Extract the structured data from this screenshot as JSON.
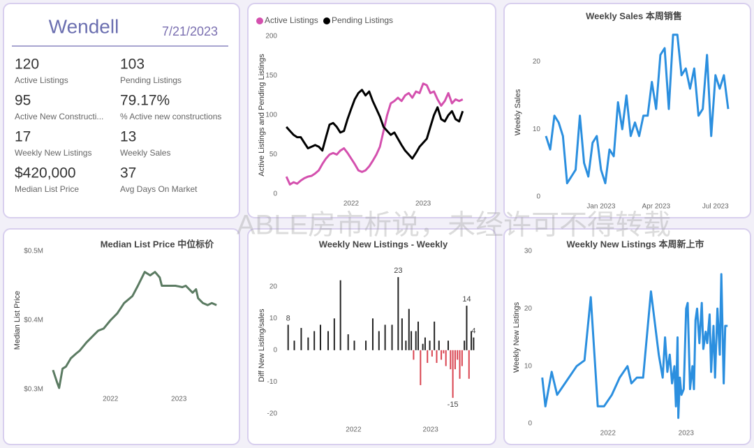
{
  "summary": {
    "title": "Wendell",
    "date": "7/21/2023",
    "kpis": [
      {
        "value": "120",
        "label": "Active Listings"
      },
      {
        "value": "103",
        "label": "Pending Listings"
      },
      {
        "value": "95",
        "label": "Active New Constructi..."
      },
      {
        "value": "79.17%",
        "label": "% Active new constructions"
      },
      {
        "value": "17",
        "label": "Weekly New Listings"
      },
      {
        "value": "13",
        "label": "Weekly Sales"
      },
      {
        "value": "$420,000",
        "label": "Median List Price"
      },
      {
        "value": "37",
        "label": "Avg Days On Market"
      }
    ]
  },
  "watermark": "ABLE房市析说，未经许可不得转载",
  "chart_data": [
    {
      "type": "line",
      "y_label": "Active Listings and Pending Listings",
      "legend": "top-left",
      "x": [
        2021.1,
        2021.15,
        2021.2,
        2021.25,
        2021.3,
        2021.35,
        2021.4,
        2021.45,
        2021.5,
        2021.55,
        2021.6,
        2021.65,
        2021.7,
        2021.75,
        2021.8,
        2021.85,
        2021.9,
        2021.95,
        2022.0,
        2022.05,
        2022.1,
        2022.15,
        2022.2,
        2022.25,
        2022.3,
        2022.35,
        2022.4,
        2022.45,
        2022.5,
        2022.55,
        2022.6,
        2022.65,
        2022.7,
        2022.75,
        2022.8,
        2022.85,
        2022.9,
        2022.95,
        2023.0,
        2023.05,
        2023.1,
        2023.15,
        2023.2,
        2023.25,
        2023.3,
        2023.35,
        2023.4,
        2023.45,
        2023.5,
        2023.55
      ],
      "series": [
        {
          "name": "Active Listings",
          "color": "#d450ae",
          "values": [
            22,
            12,
            15,
            13,
            17,
            20,
            22,
            23,
            26,
            30,
            38,
            45,
            50,
            52,
            50,
            55,
            58,
            52,
            45,
            38,
            30,
            28,
            30,
            35,
            42,
            50,
            60,
            80,
            100,
            115,
            118,
            122,
            118,
            125,
            128,
            122,
            130,
            128,
            140,
            138,
            128,
            130,
            120,
            112,
            118,
            128,
            115,
            120,
            118,
            120
          ]
        },
        {
          "name": "Pending Listings",
          "color": "#000000",
          "values": [
            85,
            80,
            75,
            72,
            72,
            65,
            58,
            60,
            62,
            60,
            55,
            72,
            88,
            90,
            85,
            78,
            80,
            95,
            108,
            120,
            128,
            132,
            125,
            130,
            118,
            108,
            98,
            85,
            80,
            75,
            78,
            70,
            62,
            55,
            50,
            45,
            52,
            60,
            65,
            70,
            85,
            100,
            110,
            95,
            92,
            100,
            105,
            95,
            92,
            105
          ]
        }
      ],
      "xlim": [
        2021.05,
        2023.6
      ],
      "xticks": [
        2022,
        2023
      ],
      "ylim": [
        0,
        200
      ],
      "yticks": [
        0,
        50,
        100,
        150,
        200
      ]
    },
    {
      "type": "line",
      "title": "Weekly Sales 本周销售",
      "y_label": "Weekly Sales",
      "color": "#2b8fdf",
      "categories": [
        null,
        null,
        null,
        null,
        null,
        null,
        null,
        null,
        null,
        null,
        null,
        null,
        null,
        "Jan 2023",
        null,
        null,
        null,
        null,
        null,
        null,
        null,
        null,
        null,
        null,
        null,
        null,
        "Apr 2023",
        null,
        null,
        null,
        null,
        null,
        null,
        null,
        null,
        null,
        null,
        null,
        null,
        null,
        "Jul 2023",
        null,
        null,
        null
      ],
      "values": [
        9,
        7,
        12,
        11,
        9,
        2,
        3,
        4,
        12,
        5,
        3,
        8,
        9,
        4,
        2,
        7,
        6,
        14,
        10,
        15,
        9,
        11,
        9,
        12,
        12,
        17,
        13,
        21,
        22,
        13,
        24,
        24,
        18,
        19,
        16,
        19,
        12,
        13,
        21,
        9,
        18,
        16,
        18,
        13
      ],
      "ylim": [
        0,
        25
      ],
      "yticks": [
        0,
        10,
        20
      ]
    },
    {
      "type": "line",
      "title": "Median List Price  中位标价",
      "y_label": "Median List Price",
      "color": "#5b7b62",
      "x": [
        2021.16,
        2021.22,
        2021.25,
        2021.3,
        2021.35,
        2021.42,
        2021.5,
        2021.55,
        2021.65,
        2021.75,
        2021.82,
        2021.9,
        2022.0,
        2022.1,
        2022.2,
        2022.32,
        2022.4,
        2022.5,
        2022.58,
        2022.65,
        2022.72,
        2022.75,
        2022.85,
        2022.95,
        2023.05,
        2023.1,
        2023.2,
        2023.25,
        2023.28,
        2023.35,
        2023.42,
        2023.48,
        2023.55
      ],
      "values": [
        328000,
        310000,
        302000,
        330000,
        333000,
        345000,
        352000,
        356000,
        368000,
        378000,
        385000,
        388000,
        400000,
        410000,
        425000,
        435000,
        450000,
        470000,
        465000,
        470000,
        462000,
        450000,
        450000,
        450000,
        448000,
        450000,
        440000,
        445000,
        432000,
        425000,
        422000,
        425000,
        422000
      ],
      "xlim": [
        2021.1,
        2023.65
      ],
      "xticks": [
        2022,
        2023
      ],
      "ylim": [
        300000,
        500000
      ],
      "yticks": [
        {
          "value": 300000,
          "label": "$0.3M"
        },
        {
          "value": 400000,
          "label": "$0.4M"
        },
        {
          "value": 500000,
          "label": "$0.5M"
        }
      ]
    },
    {
      "type": "bar",
      "title": "Weekly New Listings - Weekly",
      "y_label": "Diff New Listing/sales",
      "positive_color": "#222222",
      "negative_color": "#d9434f",
      "x": [
        2021.15,
        2021.23,
        2021.32,
        2021.41,
        2021.49,
        2021.57,
        2021.67,
        2021.75,
        2021.83,
        2021.93,
        2022.01,
        2022.16,
        2022.25,
        2022.33,
        2022.41,
        2022.5,
        2022.58,
        2022.63,
        2022.68,
        2022.72,
        2022.75,
        2022.78,
        2022.81,
        2022.84,
        2022.87,
        2022.9,
        2022.93,
        2022.96,
        2022.99,
        2023.02,
        2023.05,
        2023.08,
        2023.11,
        2023.14,
        2023.17,
        2023.2,
        2023.23,
        2023.26,
        2023.29,
        2023.32,
        2023.35,
        2023.38,
        2023.41,
        2023.44,
        2023.47,
        2023.5,
        2023.53,
        2023.56
      ],
      "values": [
        8,
        3,
        7,
        4,
        6,
        8,
        6,
        10,
        22,
        5,
        3,
        3,
        10,
        6,
        8,
        8,
        23,
        10,
        3,
        13,
        6,
        -3,
        6,
        9,
        -11,
        2,
        4,
        -4,
        3,
        -2,
        9,
        -4,
        3,
        -3,
        -1,
        -5,
        3,
        -6,
        -15,
        -6,
        -3,
        -9,
        -5,
        3,
        14,
        -9,
        6,
        4
      ],
      "value_labels": [
        "8",
        null,
        null,
        null,
        null,
        null,
        null,
        null,
        null,
        null,
        null,
        null,
        null,
        null,
        null,
        null,
        "23",
        null,
        null,
        null,
        null,
        null,
        null,
        null,
        null,
        null,
        null,
        null,
        null,
        null,
        null,
        null,
        null,
        null,
        null,
        null,
        null,
        null,
        "-15",
        null,
        null,
        null,
        null,
        null,
        "14",
        null,
        null,
        "4"
      ],
      "xlim": [
        2021.08,
        2023.62
      ],
      "xticks": [
        2022,
        2023
      ],
      "ylim": [
        -22,
        25
      ],
      "yticks": [
        -20,
        -10,
        0,
        10,
        20
      ]
    },
    {
      "type": "line",
      "title": "Weekly New Listings  本周新上市",
      "y_label": "Weekly New Listings",
      "color": "#2b8fdf",
      "x": [
        2021.16,
        2021.2,
        2021.28,
        2021.35,
        2021.45,
        2021.6,
        2021.7,
        2021.78,
        2021.87,
        2021.95,
        2022.05,
        2022.15,
        2022.25,
        2022.3,
        2022.37,
        2022.45,
        2022.55,
        2022.65,
        2022.7,
        2022.73,
        2022.76,
        2022.79,
        2022.82,
        2022.85,
        2022.87,
        2022.89,
        2022.9,
        2022.92,
        2022.94,
        2022.97,
        2023.0,
        2023.02,
        2023.05,
        2023.08,
        2023.1,
        2023.12,
        2023.14,
        2023.17,
        2023.2,
        2023.22,
        2023.25,
        2023.27,
        2023.3,
        2023.32,
        2023.35,
        2023.37,
        2023.4,
        2023.43,
        2023.45,
        2023.48,
        2023.5,
        2023.53
      ],
      "values": [
        8,
        3,
        9,
        5,
        7,
        10,
        11,
        22,
        3,
        3,
        5,
        8,
        10,
        7,
        8,
        8,
        23,
        12,
        8,
        15,
        9,
        12,
        7,
        10,
        3,
        15,
        1,
        8,
        5,
        6,
        20,
        21,
        6,
        10,
        6,
        18,
        20,
        14,
        21,
        13,
        16,
        14,
        19,
        9,
        17,
        8,
        20,
        12,
        26,
        7,
        17,
        17
      ],
      "xlim": [
        2021.1,
        2023.6
      ],
      "xticks": [
        2022,
        2023
      ],
      "ylim": [
        0,
        30
      ],
      "yticks": [
        0,
        10,
        20,
        30
      ]
    }
  ]
}
